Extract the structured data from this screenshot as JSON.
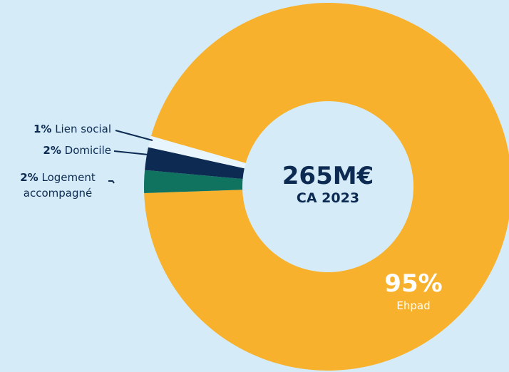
{
  "chart_data": {
    "type": "donut",
    "categories": [
      "Ehpad",
      "Logement accompagné",
      "Domicile",
      "Lien social"
    ],
    "values": [
      95,
      2,
      2,
      1
    ],
    "value_labels": [
      "95%",
      "2%",
      "2%",
      "1%"
    ],
    "colors": [
      "#f8b12c",
      "#0f7360",
      "#0d2b52",
      "#e9f5fc"
    ],
    "center_label": "265M€",
    "center_sublabel": "CA 2023"
  }
}
